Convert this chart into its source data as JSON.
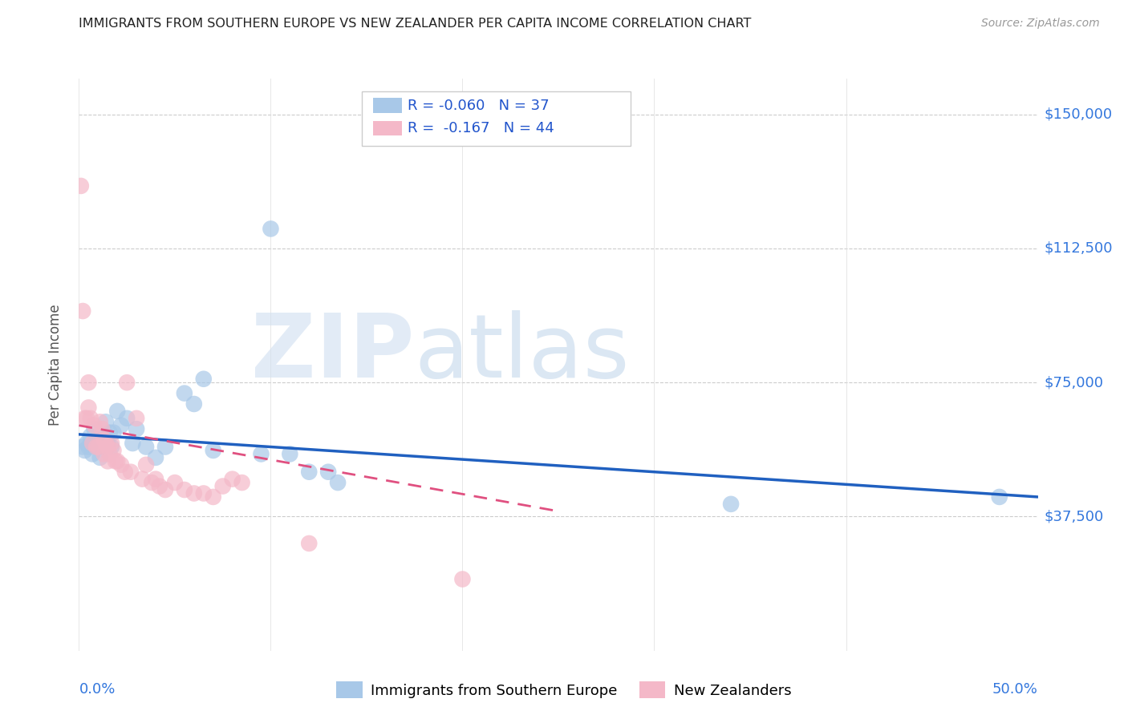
{
  "title": "IMMIGRANTS FROM SOUTHERN EUROPE VS NEW ZEALANDER PER CAPITA INCOME CORRELATION CHART",
  "source": "Source: ZipAtlas.com",
  "ylabel": "Per Capita Income",
  "legend1_label": "Immigrants from Southern Europe",
  "legend2_label": "New Zealanders",
  "R1": "-0.060",
  "N1": "37",
  "R2": "-0.167",
  "N2": "44",
  "xlim": [
    0.0,
    0.5
  ],
  "ylim": [
    0,
    160000
  ],
  "blue_color": "#a8c8e8",
  "pink_color": "#f4b8c8",
  "blue_line_color": "#2060c0",
  "pink_line_color": "#e05080",
  "watermark_zip": "ZIP",
  "watermark_atlas": "atlas",
  "blue_scatter_x": [
    0.002,
    0.003,
    0.004,
    0.005,
    0.006,
    0.007,
    0.008,
    0.009,
    0.01,
    0.011,
    0.012,
    0.013,
    0.014,
    0.015,
    0.016,
    0.017,
    0.018,
    0.02,
    0.022,
    0.025,
    0.028,
    0.03,
    0.035,
    0.04,
    0.045,
    0.055,
    0.06,
    0.065,
    0.07,
    0.095,
    0.1,
    0.11,
    0.12,
    0.13,
    0.135,
    0.34,
    0.48
  ],
  "blue_scatter_y": [
    57000,
    56000,
    58000,
    57000,
    60000,
    55000,
    62000,
    59000,
    57000,
    54000,
    59000,
    57000,
    64000,
    58000,
    61000,
    57000,
    61000,
    67000,
    63000,
    65000,
    58000,
    62000,
    57000,
    54000,
    57000,
    72000,
    69000,
    76000,
    56000,
    55000,
    118000,
    55000,
    50000,
    50000,
    47000,
    41000,
    43000
  ],
  "pink_scatter_x": [
    0.001,
    0.002,
    0.003,
    0.004,
    0.005,
    0.005,
    0.006,
    0.007,
    0.008,
    0.009,
    0.01,
    0.011,
    0.012,
    0.013,
    0.013,
    0.014,
    0.015,
    0.015,
    0.016,
    0.017,
    0.018,
    0.019,
    0.02,
    0.022,
    0.024,
    0.025,
    0.027,
    0.03,
    0.033,
    0.035,
    0.038,
    0.04,
    0.042,
    0.045,
    0.05,
    0.055,
    0.06,
    0.065,
    0.07,
    0.075,
    0.08,
    0.085,
    0.12,
    0.2
  ],
  "pink_scatter_y": [
    130000,
    95000,
    65000,
    65000,
    68000,
    75000,
    65000,
    58000,
    63000,
    57000,
    57000,
    64000,
    62000,
    59000,
    55000,
    58000,
    57000,
    53000,
    55000,
    58000,
    56000,
    53000,
    53000,
    52000,
    50000,
    75000,
    50000,
    65000,
    48000,
    52000,
    47000,
    48000,
    46000,
    45000,
    47000,
    45000,
    44000,
    44000,
    43000,
    46000,
    48000,
    47000,
    30000,
    20000
  ],
  "blue_line_x0": 0.0,
  "blue_line_x1": 0.5,
  "blue_line_y0": 60500,
  "blue_line_y1": 43000,
  "pink_line_x0": 0.0,
  "pink_line_x1": 0.25,
  "pink_line_y0": 63000,
  "pink_line_y1": 39000,
  "ytick_values": [
    37500,
    75000,
    112500,
    150000
  ],
  "ytick_labels": [
    "$37,500",
    "$75,000",
    "$112,500",
    "$150,000"
  ]
}
